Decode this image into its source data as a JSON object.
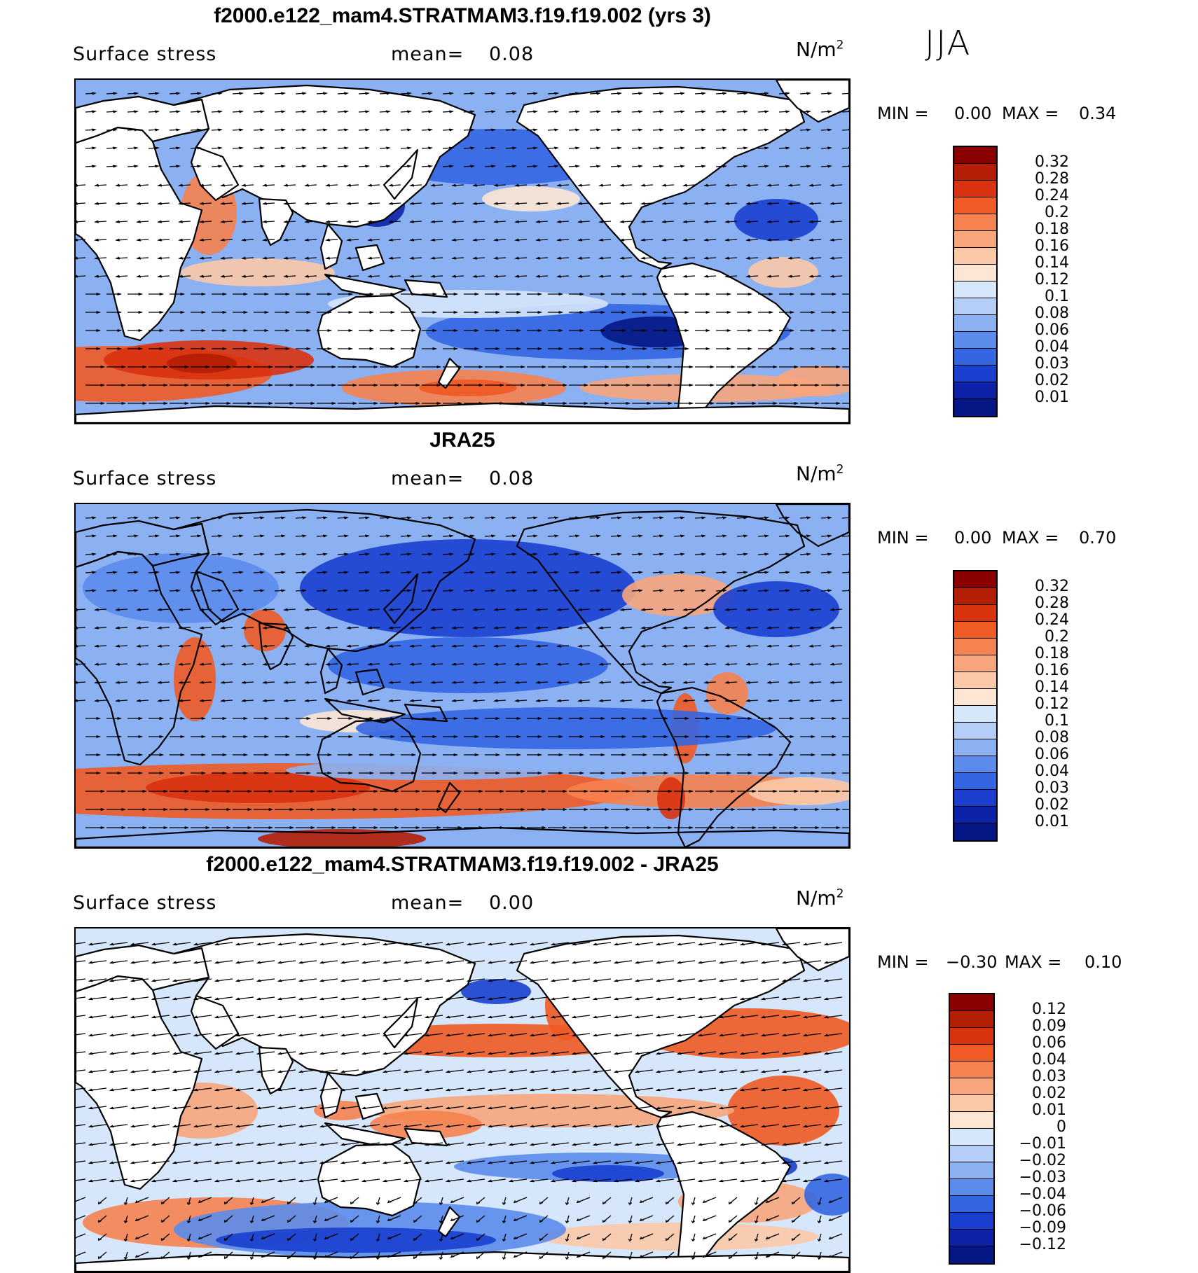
{
  "season": "JJA",
  "panels": [
    {
      "id": "model",
      "title": "f2000.e122_mam4.STRATMAM3.f19.f19.002 (yrs 3)",
      "variable": "Surface stress",
      "mean_label": "mean=",
      "mean_value": "0.08",
      "units_base": "N/m",
      "units_exp": "2",
      "min_label": "MIN =",
      "min_value": "0.00",
      "max_label": "MAX =",
      "max_value": "0.34",
      "land_masked": true,
      "colorbar_levels": [
        "0.32",
        "0.28",
        "0.24",
        "0.2",
        "0.18",
        "0.16",
        "0.14",
        "0.12",
        "0.1",
        "0.08",
        "0.06",
        "0.04",
        "0.03",
        "0.02",
        "0.01"
      ],
      "colorbar_colors": [
        "#8b0000",
        "#b41e04",
        "#d9320f",
        "#f05a24",
        "#f6824f",
        "#f8a57c",
        "#fbc9a8",
        "#fde7d4",
        "#d6e7fb",
        "#b4cef8",
        "#8bb1f3",
        "#5b8cec",
        "#3466e2",
        "#1a3fcf",
        "#0c22a8",
        "#041785"
      ]
    },
    {
      "id": "obs",
      "title": "JRA25",
      "variable": "Surface stress",
      "mean_label": "mean=",
      "mean_value": "0.08",
      "units_base": "N/m",
      "units_exp": "2",
      "min_label": "MIN =",
      "min_value": "0.00",
      "max_label": "MAX =",
      "max_value": "0.70",
      "land_masked": false,
      "colorbar_levels": [
        "0.32",
        "0.28",
        "0.24",
        "0.2",
        "0.18",
        "0.16",
        "0.14",
        "0.12",
        "0.1",
        "0.08",
        "0.06",
        "0.04",
        "0.03",
        "0.02",
        "0.01"
      ],
      "colorbar_colors": [
        "#8b0000",
        "#b41e04",
        "#d9320f",
        "#f05a24",
        "#f6824f",
        "#f8a57c",
        "#fbc9a8",
        "#fde7d4",
        "#d6e7fb",
        "#b4cef8",
        "#8bb1f3",
        "#5b8cec",
        "#3466e2",
        "#1a3fcf",
        "#0c22a8",
        "#041785"
      ]
    },
    {
      "id": "diff",
      "title": "f2000.e122_mam4.STRATMAM3.f19.f19.002 - JRA25",
      "variable": "Surface stress",
      "mean_label": "mean=",
      "mean_value": "0.00",
      "units_base": "N/m",
      "units_exp": "2",
      "min_label": "MIN =",
      "min_value": "−0.30",
      "max_label": "MAX =",
      "max_value": "0.10",
      "land_masked": true,
      "colorbar_levels": [
        "0.12",
        "0.09",
        "0.06",
        "0.04",
        "0.03",
        "0.02",
        "0.01",
        "0",
        "−0.01",
        "−0.02",
        "−0.03",
        "−0.04",
        "−0.06",
        "−0.09",
        "−0.12"
      ],
      "colorbar_colors": [
        "#8b0000",
        "#b41e04",
        "#d9320f",
        "#f05a24",
        "#f6824f",
        "#f8a57c",
        "#fbc9a8",
        "#fde7d4",
        "#d6e7fb",
        "#b4cef8",
        "#8bb1f3",
        "#5b8cec",
        "#3466e2",
        "#1a3fcf",
        "#0c22a8",
        "#041785"
      ]
    }
  ]
}
